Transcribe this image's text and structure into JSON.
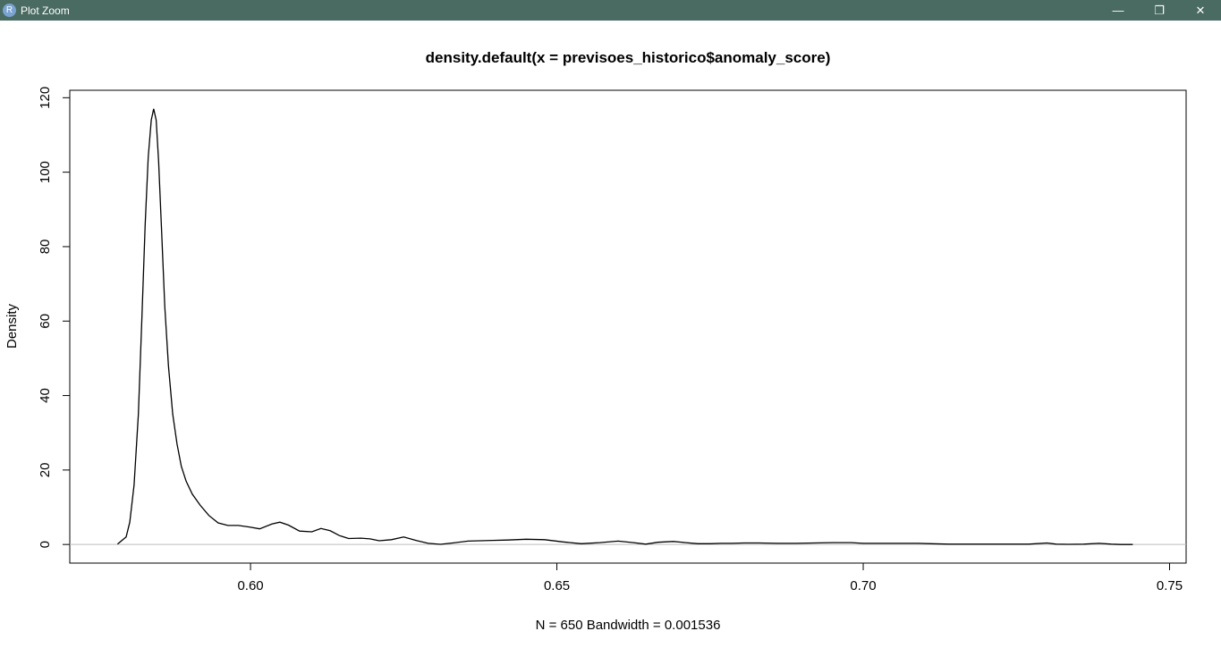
{
  "window": {
    "title": "Plot Zoom",
    "app_icon_letter": "R",
    "minimize_glyph": "—",
    "maximize_glyph": "❐",
    "close_glyph": "✕"
  },
  "chart_data": {
    "type": "line",
    "title": "density.default(x = previsoes_historico$anomaly_score)",
    "xlabel": "N = 650   Bandwidth = 0.001536",
    "ylabel": "Density",
    "xlim": [
      0.5705,
      0.7527
    ],
    "ylim": [
      -5,
      122
    ],
    "x_ticks": [
      0.6,
      0.65,
      0.7,
      0.75
    ],
    "x_tick_labels": [
      "0.60",
      "0.65",
      "0.70",
      "0.75"
    ],
    "y_ticks": [
      0,
      20,
      40,
      60,
      80,
      100,
      120
    ],
    "y_tick_labels": [
      "0",
      "20",
      "40",
      "60",
      "80",
      "100",
      "120"
    ],
    "baseline_color": "#bebebe",
    "line_color": "#000000",
    "series": [
      {
        "x": [
          0.5783,
          0.5797,
          0.5803,
          0.581,
          0.5817,
          0.5823,
          0.5828,
          0.5833,
          0.5838,
          0.5842,
          0.5846,
          0.585,
          0.5855,
          0.586,
          0.5866,
          0.5873,
          0.588,
          0.5887,
          0.5895,
          0.5905,
          0.5918,
          0.5932,
          0.5947,
          0.5963,
          0.598,
          0.5998,
          0.6015,
          0.6035,
          0.6048,
          0.6062,
          0.608,
          0.61,
          0.6115,
          0.613,
          0.6145,
          0.616,
          0.618,
          0.6195,
          0.621,
          0.623,
          0.625,
          0.627,
          0.629,
          0.631,
          0.633,
          0.6355,
          0.6375,
          0.6395,
          0.642,
          0.645,
          0.648,
          0.651,
          0.654,
          0.657,
          0.66,
          0.6625,
          0.6645,
          0.6665,
          0.669,
          0.671,
          0.673,
          0.675,
          0.6768,
          0.6785,
          0.6805,
          0.683,
          0.686,
          0.689,
          0.692,
          0.695,
          0.698,
          0.7,
          0.703,
          0.706,
          0.709,
          0.711,
          0.714,
          0.717,
          0.72,
          0.723,
          0.727,
          0.73,
          0.7315,
          0.7335,
          0.736,
          0.7385,
          0.7405,
          0.742,
          0.744
        ],
        "y": [
          0.1,
          2,
          6,
          16,
          35,
          62,
          86,
          104,
          114,
          117,
          114,
          103,
          84,
          64,
          48,
          35,
          27,
          21,
          17,
          13.5,
          10.5,
          7.8,
          5.8,
          5.1,
          5.1,
          4.7,
          4.2,
          5.5,
          6.0,
          5.2,
          3.6,
          3.4,
          4.3,
          3.7,
          2.4,
          1.6,
          1.7,
          1.5,
          1.0,
          1.3,
          2.0,
          1.1,
          0.3,
          0.05,
          0.4,
          0.9,
          1.0,
          1.1,
          1.2,
          1.4,
          1.3,
          0.7,
          0.2,
          0.5,
          0.9,
          0.5,
          0.1,
          0.6,
          0.8,
          0.5,
          0.2,
          0.2,
          0.3,
          0.3,
          0.4,
          0.4,
          0.3,
          0.3,
          0.4,
          0.5,
          0.5,
          0.3,
          0.3,
          0.3,
          0.3,
          0.2,
          0.1,
          0.1,
          0.1,
          0.1,
          0.1,
          0.4,
          0.1,
          0.05,
          0.1,
          0.3,
          0.1,
          0.0,
          0.0
        ]
      }
    ]
  }
}
